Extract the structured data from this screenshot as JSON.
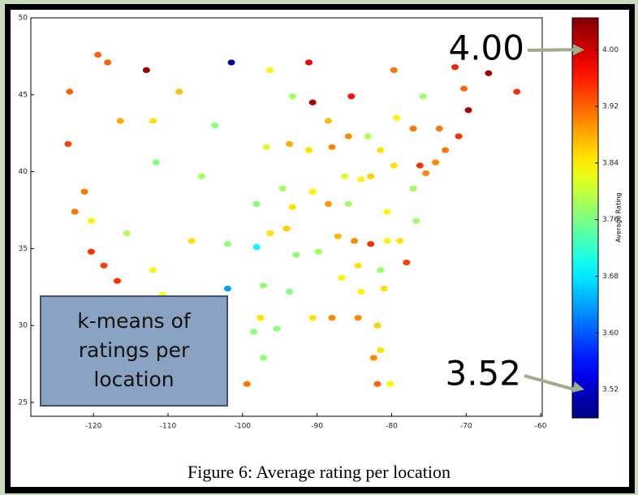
{
  "chart_data": {
    "type": "scatter",
    "caption": "Figure 6: Average rating per location",
    "colorbar_label": "Average Rating",
    "colormap": "jet",
    "note": [
      "k-means of",
      "ratings per",
      "location"
    ],
    "annotations": [
      {
        "label": "4.00",
        "value": 4
      },
      {
        "label": "3.52",
        "value": 3.52
      }
    ],
    "xlim": [
      -128.4,
      -59.8
    ],
    "xticks": [
      -120,
      -110,
      -100,
      -90,
      -80,
      -70,
      -60
    ],
    "ylim": [
      24.1,
      50
    ],
    "yticks": [
      25,
      30,
      35,
      40,
      45,
      50
    ],
    "clim": [
      3.48,
      4.045
    ],
    "cticks": [
      {
        "value": 4,
        "label": "4.00"
      },
      3.92,
      3.84,
      3.76,
      3.68,
      {
        "value": 3.6,
        "label": "3.60"
      },
      3.52
    ],
    "x": [
      -119.4,
      -118.1,
      -112.9,
      -101.5,
      -96.3,
      -91.1,
      -79.7,
      -71.5,
      -67.0,
      -123.2,
      -108.5,
      -93.3,
      -90.6,
      -85.4,
      -75.8,
      -63.2,
      -116.4,
      -112.0,
      -103.7,
      -79.3,
      -88.5,
      -70.3,
      -69.7,
      -77.1,
      -73.6,
      -71.0,
      -123.4,
      -96.8,
      -93.7,
      -91.1,
      -88.0,
      -85.8,
      -83.2,
      -81.5,
      -72.8,
      -74.1,
      -111.6,
      -79.7,
      -76.2,
      -75.4,
      -105.5,
      -86.3,
      -84.1,
      -82.8,
      -121.2,
      -94.6,
      -90.6,
      -77.1,
      -98.1,
      -93.3,
      -122.5,
      -88.5,
      -85.8,
      -80.6,
      -76.7,
      -120.3,
      -115.5,
      -94.1,
      -96.3,
      -106.8,
      -87.2,
      -85.0,
      -82.8,
      -80.6,
      -78.9,
      -120.3,
      -102.0,
      -98.1,
      -89.8,
      -92.8,
      -118.6,
      -112.0,
      -84.5,
      -81.5,
      -78.0,
      -116.8,
      -86.7,
      -97.2,
      -81.0,
      -102.0,
      -93.7,
      -84.1,
      -110.7,
      -97.6,
      -90.6,
      -88.0,
      -84.5,
      -81.9,
      -95.4,
      -98.5,
      -81.5,
      -97.2,
      -82.4,
      -99.4,
      -81.9,
      -80.2
    ],
    "y": [
      47.6,
      47.1,
      46.6,
      47.1,
      46.6,
      47.1,
      46.6,
      46.8,
      46.4,
      45.2,
      45.2,
      44.9,
      44.5,
      44.9,
      44.9,
      45.2,
      43.3,
      43.3,
      43.0,
      43.5,
      43.3,
      45.4,
      44.0,
      42.8,
      42.8,
      42.3,
      41.8,
      41.6,
      41.8,
      41.4,
      41.6,
      42.3,
      42.3,
      41.4,
      41.4,
      40.6,
      40.6,
      40.4,
      40.4,
      39.9,
      39.7,
      39.7,
      39.5,
      39.7,
      38.7,
      38.9,
      38.7,
      38.9,
      37.9,
      37.7,
      37.4,
      37.9,
      37.9,
      37.4,
      36.8,
      36.8,
      36.0,
      36.3,
      36.0,
      35.5,
      35.8,
      35.5,
      35.3,
      35.5,
      35.5,
      34.8,
      35.3,
      35.1,
      34.8,
      34.6,
      33.9,
      33.6,
      33.9,
      33.6,
      34.1,
      32.9,
      33.1,
      32.6,
      32.4,
      32.4,
      32.2,
      32.2,
      32.0,
      30.5,
      30.5,
      30.5,
      30.5,
      30.0,
      29.8,
      29.6,
      28.4,
      27.9,
      27.9,
      26.2,
      26.2,
      26.2
    ],
    "c": [
      3.92,
      3.92,
      4.03,
      3.5,
      3.84,
      3.98,
      3.91,
      3.96,
      4.03,
      3.92,
      3.87,
      3.78,
      4.02,
      3.97,
      3.78,
      3.95,
      3.88,
      3.85,
      3.77,
      3.84,
      3.87,
      3.92,
      4.02,
      3.91,
      3.91,
      3.95,
      3.94,
      3.81,
      3.88,
      3.85,
      3.9,
      3.9,
      3.79,
      3.85,
      3.91,
      3.9,
      3.76,
      3.85,
      3.95,
      3.9,
      3.78,
      3.81,
      3.84,
      3.86,
      3.91,
      3.78,
      3.84,
      3.78,
      3.77,
      3.85,
      3.91,
      3.89,
      3.78,
      3.84,
      3.78,
      3.84,
      3.79,
      3.86,
      3.85,
      3.85,
      3.87,
      3.9,
      3.95,
      3.84,
      3.85,
      3.95,
      3.77,
      3.69,
      3.78,
      3.77,
      3.94,
      3.84,
      3.85,
      3.78,
      3.94,
      3.95,
      3.84,
      3.77,
      3.85,
      3.64,
      3.76,
      3.84,
      3.83,
      3.85,
      3.85,
      3.9,
      3.9,
      3.86,
      3.77,
      3.77,
      3.85,
      3.77,
      3.9,
      3.91,
      3.92,
      3.84
    ]
  }
}
